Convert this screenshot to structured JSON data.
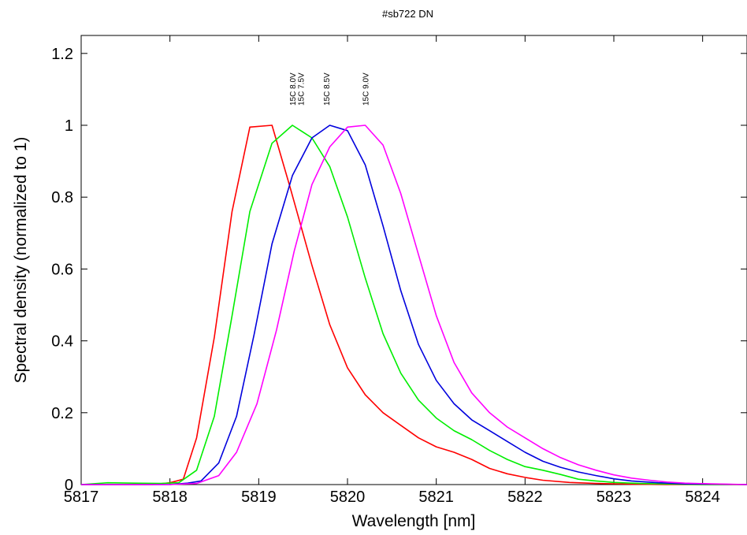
{
  "chart_data": {
    "type": "line",
    "title": "#sb722 DN",
    "xlabel": "Wavelength [nm]",
    "ylabel": "Spectral density (normalized to 1)",
    "xlim": [
      5817,
      5824.5
    ],
    "ylim": [
      0,
      1.25
    ],
    "x_ticks": [
      "5817",
      "5818",
      "5819",
      "5820",
      "5821",
      "5822",
      "5823",
      "5824"
    ],
    "y_ticks": [
      "0",
      "0.2",
      "0.4",
      "0.6",
      "0.8",
      "1",
      "1.2"
    ],
    "grid": false,
    "annotations": [
      "15C 7.5V",
      "15C 8.0V",
      "15C 8.5V",
      "15C 9.0V"
    ],
    "series": [
      {
        "color": "#ff0000",
        "points": [
          [
            5817,
            0.0
          ],
          [
            5817.2,
            0.0
          ],
          [
            5817.4,
            0.0
          ],
          [
            5817.6,
            0.0
          ],
          [
            5817.8,
            0.0
          ],
          [
            5818.0,
            0.005
          ],
          [
            5818.15,
            0.015
          ],
          [
            5818.3,
            0.13
          ],
          [
            5818.5,
            0.41
          ],
          [
            5818.7,
            0.76
          ],
          [
            5818.9,
            0.995
          ],
          [
            5819.15,
            1.0
          ],
          [
            5819.35,
            0.83
          ],
          [
            5819.6,
            0.61
          ],
          [
            5819.8,
            0.445
          ],
          [
            5820.0,
            0.325
          ],
          [
            5820.2,
            0.25
          ],
          [
            5820.4,
            0.2
          ],
          [
            5820.6,
            0.165
          ],
          [
            5820.8,
            0.13
          ],
          [
            5821.0,
            0.105
          ],
          [
            5821.2,
            0.09
          ],
          [
            5821.4,
            0.07
          ],
          [
            5821.6,
            0.045
          ],
          [
            5821.8,
            0.03
          ],
          [
            5822.0,
            0.02
          ],
          [
            5822.2,
            0.012
          ],
          [
            5822.5,
            0.006
          ],
          [
            5822.8,
            0.003
          ],
          [
            5823.2,
            0.001
          ],
          [
            5823.6,
            0.0
          ],
          [
            5824.0,
            0.0
          ],
          [
            5824.5,
            0.0
          ]
        ]
      },
      {
        "color": "#00ee00",
        "points": [
          [
            5817,
            0.0
          ],
          [
            5817.3,
            0.005
          ],
          [
            5817.6,
            0.004
          ],
          [
            5817.9,
            0.003
          ],
          [
            5818.1,
            0.005
          ],
          [
            5818.3,
            0.04
          ],
          [
            5818.5,
            0.19
          ],
          [
            5818.7,
            0.47
          ],
          [
            5818.9,
            0.76
          ],
          [
            5819.15,
            0.95
          ],
          [
            5819.38,
            1.0
          ],
          [
            5819.6,
            0.965
          ],
          [
            5819.8,
            0.885
          ],
          [
            5820.0,
            0.745
          ],
          [
            5820.2,
            0.575
          ],
          [
            5820.4,
            0.42
          ],
          [
            5820.6,
            0.31
          ],
          [
            5820.8,
            0.235
          ],
          [
            5821.0,
            0.185
          ],
          [
            5821.2,
            0.15
          ],
          [
            5821.4,
            0.125
          ],
          [
            5821.6,
            0.095
          ],
          [
            5821.8,
            0.07
          ],
          [
            5822.0,
            0.05
          ],
          [
            5822.2,
            0.04
          ],
          [
            5822.4,
            0.028
          ],
          [
            5822.6,
            0.015
          ],
          [
            5822.8,
            0.01
          ],
          [
            5823.0,
            0.006
          ],
          [
            5823.3,
            0.003
          ],
          [
            5823.7,
            0.001
          ],
          [
            5824.0,
            0.0
          ],
          [
            5824.5,
            0.0
          ]
        ]
      },
      {
        "color": "#0000dd",
        "points": [
          [
            5817,
            0.0
          ],
          [
            5817.5,
            0.0
          ],
          [
            5818.0,
            0.0
          ],
          [
            5818.2,
            0.004
          ],
          [
            5818.35,
            0.01
          ],
          [
            5818.55,
            0.06
          ],
          [
            5818.75,
            0.19
          ],
          [
            5818.95,
            0.42
          ],
          [
            5819.15,
            0.67
          ],
          [
            5819.38,
            0.86
          ],
          [
            5819.6,
            0.965
          ],
          [
            5819.8,
            1.0
          ],
          [
            5820.0,
            0.985
          ],
          [
            5820.2,
            0.89
          ],
          [
            5820.4,
            0.72
          ],
          [
            5820.6,
            0.54
          ],
          [
            5820.8,
            0.39
          ],
          [
            5821.0,
            0.29
          ],
          [
            5821.2,
            0.225
          ],
          [
            5821.4,
            0.18
          ],
          [
            5821.6,
            0.15
          ],
          [
            5821.8,
            0.12
          ],
          [
            5822.0,
            0.09
          ],
          [
            5822.2,
            0.065
          ],
          [
            5822.4,
            0.048
          ],
          [
            5822.6,
            0.035
          ],
          [
            5822.8,
            0.025
          ],
          [
            5823.0,
            0.016
          ],
          [
            5823.2,
            0.01
          ],
          [
            5823.5,
            0.005
          ],
          [
            5823.8,
            0.002
          ],
          [
            5824.2,
            0.001
          ],
          [
            5824.5,
            0.0
          ]
        ]
      },
      {
        "color": "#ff00ff",
        "points": [
          [
            5817,
            0.0
          ],
          [
            5817.5,
            0.0
          ],
          [
            5818.0,
            0.0
          ],
          [
            5818.3,
            0.003
          ],
          [
            5818.55,
            0.025
          ],
          [
            5818.75,
            0.09
          ],
          [
            5818.98,
            0.225
          ],
          [
            5819.2,
            0.43
          ],
          [
            5819.4,
            0.65
          ],
          [
            5819.6,
            0.835
          ],
          [
            5819.8,
            0.94
          ],
          [
            5820.0,
            0.995
          ],
          [
            5820.2,
            1.0
          ],
          [
            5820.4,
            0.945
          ],
          [
            5820.6,
            0.81
          ],
          [
            5820.8,
            0.64
          ],
          [
            5821.0,
            0.47
          ],
          [
            5821.2,
            0.34
          ],
          [
            5821.4,
            0.255
          ],
          [
            5821.6,
            0.2
          ],
          [
            5821.8,
            0.16
          ],
          [
            5822.0,
            0.13
          ],
          [
            5822.2,
            0.1
          ],
          [
            5822.4,
            0.075
          ],
          [
            5822.6,
            0.055
          ],
          [
            5822.8,
            0.04
          ],
          [
            5823.0,
            0.027
          ],
          [
            5823.2,
            0.018
          ],
          [
            5823.4,
            0.012
          ],
          [
            5823.6,
            0.007
          ],
          [
            5823.8,
            0.004
          ],
          [
            5824.1,
            0.002
          ],
          [
            5824.5,
            0.0
          ]
        ]
      }
    ]
  }
}
